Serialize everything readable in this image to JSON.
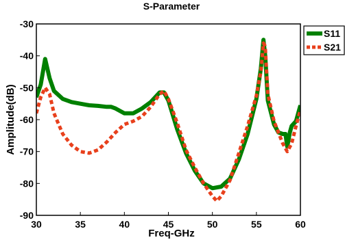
{
  "chart_data": {
    "type": "line",
    "title": "S-Parameter",
    "xlabel": "Freq-GHz",
    "ylabel": "Amplitude(dB)",
    "xlim": [
      30,
      60
    ],
    "ylim": [
      -90,
      -30
    ],
    "xticks": [
      30,
      35,
      40,
      45,
      50,
      55,
      60
    ],
    "yticks": [
      -30,
      -40,
      -50,
      -60,
      -70,
      -80,
      -90
    ],
    "grid": false,
    "legend_position": "top-right-outside",
    "series": [
      {
        "name": "S11",
        "color": "#008000",
        "style": "solid",
        "x": [
          30,
          30.5,
          31,
          31.5,
          32,
          33,
          34,
          35,
          36,
          37,
          38,
          38.5,
          39,
          40,
          41,
          42,
          43,
          44,
          44.5,
          45,
          46,
          47,
          48,
          49,
          50,
          51,
          52,
          53,
          54,
          55,
          55.5,
          55.8,
          56,
          56.3,
          57,
          57.5,
          58,
          58.3,
          58.5,
          58.8,
          59,
          59.5,
          60
        ],
        "y": [
          -53,
          -49,
          -41,
          -47,
          -51,
          -53.5,
          -54.5,
          -55,
          -55.5,
          -55.7,
          -56,
          -56,
          -56.5,
          -58,
          -58,
          -56.5,
          -54.5,
          -51.5,
          -51.5,
          -54,
          -63,
          -70.5,
          -76,
          -80,
          -81.5,
          -81,
          -78.5,
          -72.5,
          -64.5,
          -53.5,
          -44,
          -35,
          -40,
          -54,
          -61.5,
          -64,
          -64.5,
          -64.5,
          -68.5,
          -64,
          -62,
          -60.5,
          -55.5
        ]
      },
      {
        "name": "S21",
        "color": "#e8401c",
        "style": "dashed",
        "x": [
          30,
          30.5,
          31,
          31.5,
          32,
          33,
          34,
          35,
          36,
          37,
          38,
          39,
          40,
          41,
          42,
          43,
          44,
          44.5,
          45,
          46,
          47,
          48,
          49,
          50,
          50.5,
          51,
          52,
          53,
          54,
          55,
          55.5,
          55.8,
          56,
          56.3,
          57,
          57.5,
          58,
          58.5,
          59,
          59.5,
          60
        ],
        "y": [
          -58,
          -53,
          -50,
          -52,
          -58,
          -64.5,
          -68,
          -70,
          -70.5,
          -69.5,
          -67,
          -64,
          -61.5,
          -60.5,
          -59,
          -56,
          -52,
          -51,
          -53.5,
          -61,
          -69.5,
          -75,
          -80,
          -84,
          -85.5,
          -84,
          -79,
          -70.5,
          -62,
          -52.5,
          -45,
          -36,
          -37,
          -52,
          -60.5,
          -64,
          -67.5,
          -70,
          -67.5,
          -62,
          -57
        ]
      }
    ]
  }
}
